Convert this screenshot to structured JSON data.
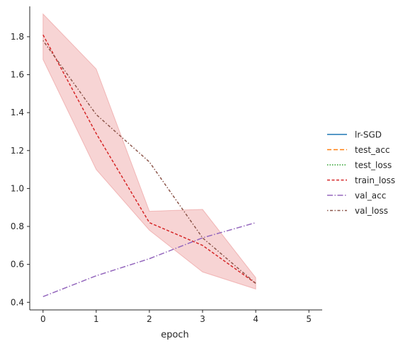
{
  "chart_data": {
    "type": "line",
    "xlabel": "epoch",
    "ylabel": "",
    "xlim": [
      -0.25,
      5.25
    ],
    "ylim": [
      0.36,
      1.96
    ],
    "x_ticks": [
      0,
      1,
      2,
      3,
      4,
      5
    ],
    "y_ticks": [
      0.4,
      0.6,
      0.8,
      1.0,
      1.2,
      1.4,
      1.6,
      1.8
    ],
    "x_tick_labels": [
      "0",
      "1",
      "2",
      "3",
      "4",
      "5"
    ],
    "y_tick_labels": [
      "0.4",
      "0.6",
      "0.8",
      "1.0",
      "1.2",
      "1.4",
      "1.6",
      "1.8"
    ],
    "grid": false,
    "legend_position": "right",
    "series": [
      {
        "name": "lr-SGD",
        "color": "#1f77b4",
        "dash": "",
        "x": [],
        "y": []
      },
      {
        "name": "test_acc",
        "color": "#ff7f0e",
        "dash": "6,3",
        "x": [],
        "y": []
      },
      {
        "name": "test_loss",
        "color": "#2ca02c",
        "dash": "1.5,2",
        "x": [],
        "y": []
      },
      {
        "name": "train_loss",
        "color": "#d62728",
        "dash": "4,2.5",
        "x": [
          0,
          1,
          2,
          3,
          4
        ],
        "y": [
          1.81,
          1.29,
          0.82,
          0.7,
          0.5
        ],
        "band_lower": [
          1.68,
          1.1,
          0.78,
          0.56,
          0.47
        ],
        "band_upper": [
          1.92,
          1.63,
          0.88,
          0.89,
          0.53
        ]
      },
      {
        "name": "val_acc",
        "color": "#9467bd",
        "dash": "8,2.5,1.5,2.5",
        "x": [
          0,
          1,
          2,
          3,
          4
        ],
        "y": [
          0.43,
          0.54,
          0.63,
          0.74,
          0.82
        ]
      },
      {
        "name": "val_loss",
        "color": "#8c564b",
        "dash": "1.5,2.5,4,2.5",
        "x": [
          0,
          1,
          2,
          3,
          4
        ],
        "y": [
          1.78,
          1.39,
          1.14,
          0.74,
          0.5
        ]
      }
    ]
  }
}
